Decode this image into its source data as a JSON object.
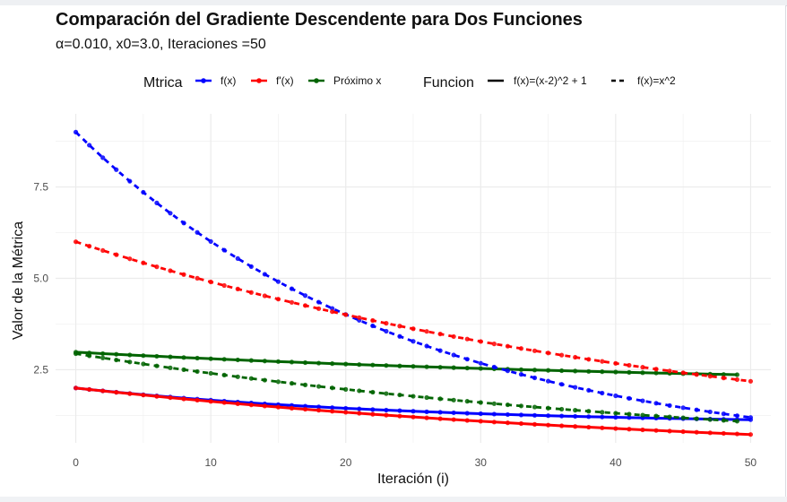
{
  "chart_data": {
    "type": "line",
    "title": "Comparación del Gradiente Descendente para Dos Funciones",
    "subtitle": "α=0.010, x0=3.0, Iteraciones =50",
    "xlabel": "Iteración (i)",
    "ylabel": "Valor de la Métrica",
    "xlim": [
      -1.5,
      51.5
    ],
    "ylim": [
      0.5,
      9.5
    ],
    "x_ticks": [
      0,
      10,
      20,
      30,
      40,
      50
    ],
    "y_ticks": [
      2.5,
      5.0,
      7.5
    ],
    "y_tick_labels": [
      "2.5",
      "5.0",
      "7.5"
    ],
    "grid": true,
    "legend_position": "top",
    "legend_metric_title": "Mtrica",
    "legend_function_title": "Funcion",
    "metrics": [
      {
        "label": "f(x)",
        "color": "#0000ff"
      },
      {
        "label": "f'(x)",
        "color": "#ff0000"
      },
      {
        "label": "Próximo x",
        "color": "#006400"
      }
    ],
    "functions": [
      {
        "label": "f(x)=(x-2)^2 + 1",
        "linetype": "solid"
      },
      {
        "label": "f(x)=x^2",
        "linetype": "dashed"
      }
    ],
    "series": [
      {
        "metric": "f(x)",
        "function": "f(x)=(x-2)^2 + 1",
        "color": "#0000ff",
        "linetype": "solid",
        "formula": "1 + 0.98^(2i)",
        "x": [
          0,
          50
        ],
        "y_start": 2.0,
        "y_end": 1.133
      },
      {
        "metric": "f'(x)",
        "function": "f(x)=(x-2)^2 + 1",
        "color": "#ff0000",
        "linetype": "solid",
        "formula": "2 * 0.98^i",
        "x": [
          0,
          50
        ],
        "y_start": 2.0,
        "y_end": 0.729
      },
      {
        "metric": "Próximo x",
        "function": "f(x)=(x-2)^2 + 1",
        "color": "#006400",
        "linetype": "solid",
        "formula": "2 + 0.98^(i+1)",
        "x": [
          0,
          49
        ],
        "y_start": 2.98,
        "y_end": 2.364
      },
      {
        "metric": "f(x)",
        "function": "f(x)=x^2",
        "color": "#0000ff",
        "linetype": "dashed",
        "formula": "9 * 0.98^(2i)",
        "x": [
          0,
          50
        ],
        "y_start": 9.0,
        "y_end": 1.195
      },
      {
        "metric": "f'(x)",
        "function": "f(x)=x^2",
        "color": "#ff0000",
        "linetype": "dashed",
        "formula": "6 * 0.98^i",
        "x": [
          0,
          50
        ],
        "y_start": 6.0,
        "y_end": 2.187
      },
      {
        "metric": "Próximo x",
        "function": "f(x)=x^2",
        "color": "#006400",
        "linetype": "dashed",
        "formula": "3 * 0.98^(i+1)",
        "x": [
          0,
          49
        ],
        "y_start": 2.94,
        "y_end": 1.094
      }
    ]
  }
}
